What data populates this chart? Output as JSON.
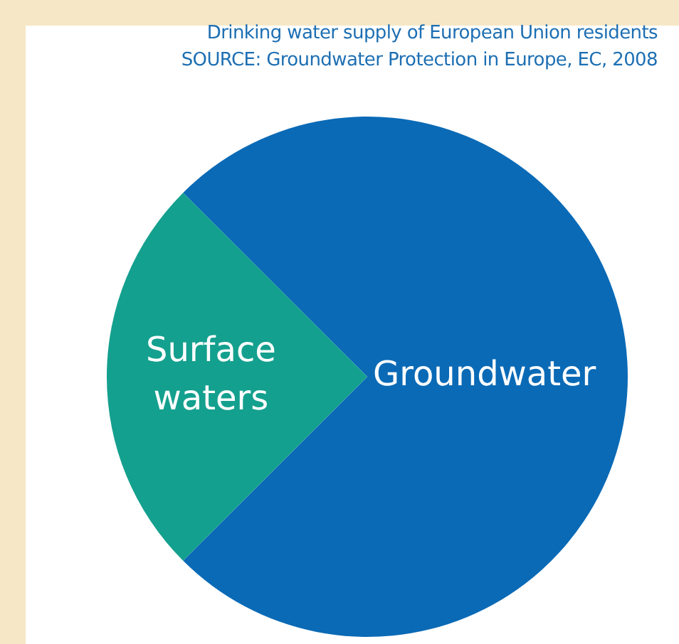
{
  "chart_data": {
    "type": "pie",
    "title": "Drinking water supply of European Union residents",
    "annotations": [
      "SOURCE: Groundwater Protection in Europe, EC, 2008"
    ],
    "categories": [
      "Groundwater",
      "Surface waters"
    ],
    "values": [
      75,
      25
    ],
    "colors": [
      "#0a6ab6",
      "#14a08e"
    ],
    "legend": false
  }
}
